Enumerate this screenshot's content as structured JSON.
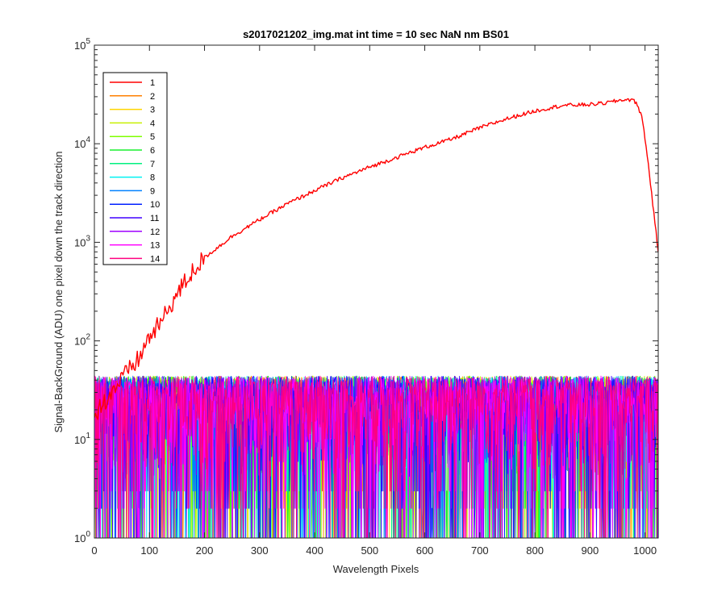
{
  "chart_data": {
    "type": "line",
    "title": "s2017021202_img.mat int time = 10 sec  NaN nm BS01",
    "xlabel": "Wavelength Pixels",
    "ylabel": "Signal-BackGround (ADU) one pixel down the track direction",
    "xlim": [
      0,
      1024
    ],
    "ylim": [
      1,
      100000
    ],
    "yscale": "log",
    "grid": false,
    "legend_position": "top-left",
    "x_ticks": [
      "0",
      "100",
      "200",
      "300",
      "400",
      "500",
      "600",
      "700",
      "800",
      "900",
      "1000"
    ],
    "x_tick_values": [
      0,
      100,
      200,
      300,
      400,
      500,
      600,
      700,
      800,
      900,
      1000
    ],
    "y_tick_values": [
      1,
      10,
      100,
      1000,
      10000,
      100000
    ],
    "y_tick_exponents": [
      "0",
      "1",
      "2",
      "3",
      "4",
      "5"
    ],
    "y_tick_base": "10",
    "series": [
      {
        "name": "1",
        "color": "#ff0000",
        "points": [
          [
            0,
            18
          ],
          [
            20,
            25
          ],
          [
            40,
            35
          ],
          [
            60,
            48
          ],
          [
            80,
            65
          ],
          [
            100,
            110
          ],
          [
            120,
            150
          ],
          [
            140,
            240
          ],
          [
            160,
            360
          ],
          [
            180,
            520
          ],
          [
            200,
            700
          ],
          [
            250,
            1150
          ],
          [
            300,
            1700
          ],
          [
            350,
            2450
          ],
          [
            400,
            3350
          ],
          [
            450,
            4500
          ],
          [
            500,
            5800
          ],
          [
            550,
            7300
          ],
          [
            600,
            9200
          ],
          [
            650,
            11200
          ],
          [
            700,
            14500
          ],
          [
            750,
            18000
          ],
          [
            800,
            21500
          ],
          [
            850,
            24500
          ],
          [
            900,
            25000
          ],
          [
            930,
            26000
          ],
          [
            960,
            28000
          ],
          [
            975,
            28000
          ],
          [
            985,
            26000
          ],
          [
            995,
            18000
          ],
          [
            1005,
            7000
          ],
          [
            1015,
            2200
          ],
          [
            1024,
            800
          ]
        ]
      },
      {
        "name": "2",
        "color": "#ff7f00",
        "noise": true
      },
      {
        "name": "3",
        "color": "#ffd500",
        "noise": true
      },
      {
        "name": "4",
        "color": "#c8f000",
        "noise": true
      },
      {
        "name": "5",
        "color": "#7fff00",
        "noise": true
      },
      {
        "name": "6",
        "color": "#19f02f",
        "noise": true
      },
      {
        "name": "7",
        "color": "#00f07f",
        "noise": true
      },
      {
        "name": "8",
        "color": "#00f2f2",
        "noise": true
      },
      {
        "name": "9",
        "color": "#0080ff",
        "noise": true
      },
      {
        "name": "10",
        "color": "#0020ff",
        "noise": true
      },
      {
        "name": "11",
        "color": "#4000ff",
        "noise": true
      },
      {
        "name": "12",
        "color": "#9f00ff",
        "noise": true
      },
      {
        "name": "13",
        "color": "#ff00ff",
        "noise": true
      },
      {
        "name": "14",
        "color": "#ff0080",
        "noise": true
      }
    ],
    "noise_series_typical_range": [
      1,
      50
    ]
  }
}
